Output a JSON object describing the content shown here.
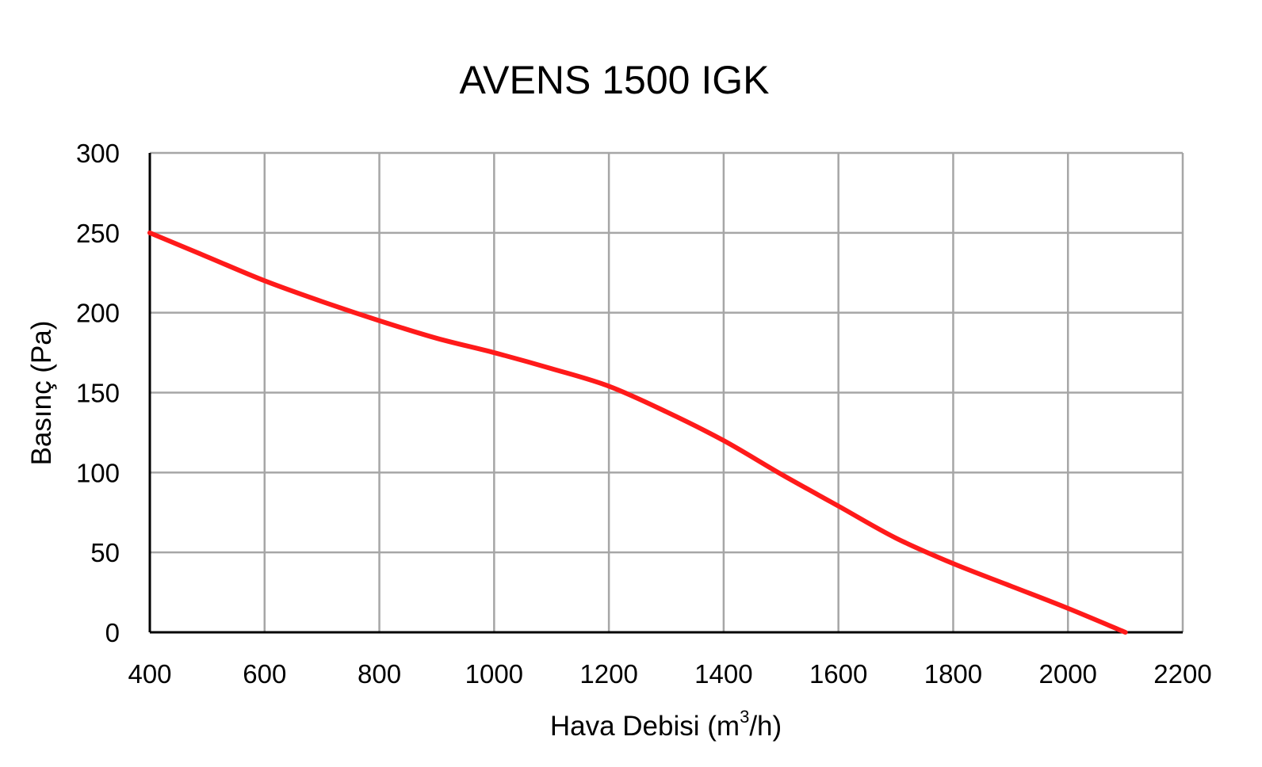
{
  "chart_data": {
    "type": "line",
    "title": "AVENS 1500 IGK",
    "xlabel": "Hava Debisi (m",
    "xlabel_sup": "3",
    "xlabel_suffix": "/h)",
    "ylabel": "Basınç (Pa)",
    "xlim": [
      400,
      2200
    ],
    "ylim": [
      0,
      300
    ],
    "xticks": [
      400,
      600,
      800,
      1000,
      1200,
      1400,
      1600,
      1800,
      2000,
      2200
    ],
    "yticks": [
      0,
      50,
      100,
      150,
      200,
      250,
      300
    ],
    "grid": true,
    "legend": "none",
    "series": [
      {
        "color": "#ff1a1a",
        "x": [
          400,
          500,
          600,
          700,
          800,
          900,
          1000,
          1100,
          1200,
          1300,
          1400,
          1500,
          1600,
          1700,
          1800,
          1900,
          2000,
          2100
        ],
        "y": [
          250,
          235,
          220,
          207,
          195,
          184,
          175,
          165,
          154,
          138,
          120,
          99,
          79,
          59,
          43,
          29,
          15,
          0
        ]
      }
    ]
  }
}
